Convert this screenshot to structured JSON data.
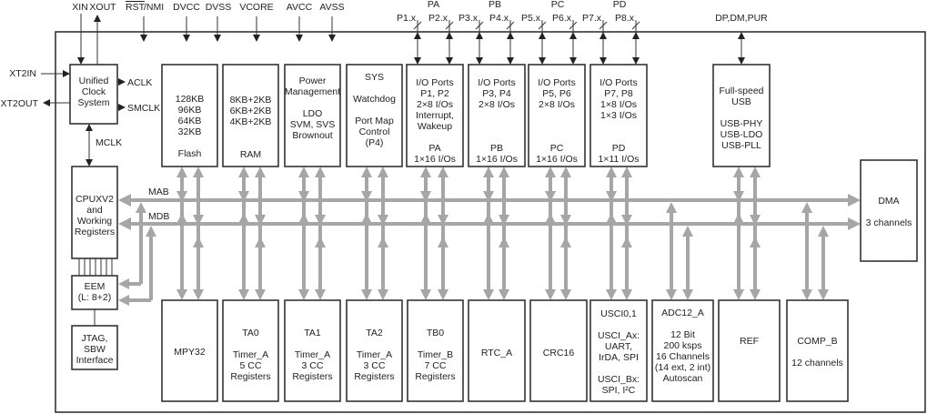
{
  "pins": {
    "xin": "XIN",
    "xout": "XOUT",
    "rst": "RST",
    "nmi": "/NMI",
    "dvcc": "DVCC",
    "dvss": "DVSS",
    "vcore": "VCORE",
    "avcc": "AVCC",
    "avss": "AVSS",
    "xt2in": "XT2IN",
    "xt2out": "XT2OUT",
    "usb": "DP,DM,PUR"
  },
  "ports": [
    {
      "group": "PA",
      "pins": [
        "P1.x",
        "P2.x"
      ]
    },
    {
      "group": "PB",
      "pins": [
        "P3.x",
        "P4.x"
      ]
    },
    {
      "group": "PC",
      "pins": [
        "P5.x",
        "P6.x"
      ]
    },
    {
      "group": "PD",
      "pins": [
        "P7.x",
        "P8.x"
      ]
    }
  ],
  "clocks": {
    "aclk": "ACLK",
    "smclk": "SMCLK",
    "mclk": "MCLK"
  },
  "buses": {
    "mab": "MAB",
    "mdb": "MDB"
  },
  "blocks": [
    {
      "id": "clock",
      "lines": [
        "Unified",
        "Clock",
        "System"
      ]
    },
    {
      "id": "flash",
      "lines": [
        "128KB",
        "96KB",
        "64KB",
        "32KB",
        "",
        "Flash"
      ]
    },
    {
      "id": "ram",
      "lines": [
        "8KB+2KB",
        "6KB+2KB",
        "4KB+2KB",
        "",
        "",
        "RAM"
      ]
    },
    {
      "id": "power",
      "lines": [
        "Power",
        "Management",
        "",
        "LDO",
        "SVM, SVS",
        "Brownout"
      ]
    },
    {
      "id": "sys",
      "lines": [
        "SYS",
        "",
        "Watchdog",
        "",
        "Port Map",
        "Control",
        "(P4)"
      ]
    },
    {
      "id": "port-pa",
      "lines": [
        "I/O Ports",
        "P1, P2",
        "2×8 I/Os",
        "Interrupt,",
        "Wakeup",
        "",
        "PA",
        "1×16 I/Os"
      ]
    },
    {
      "id": "port-pb",
      "lines": [
        "I/O Ports",
        "P3, P4",
        "2×8 I/Os",
        "",
        "",
        "",
        "PB",
        "1×16 I/Os"
      ]
    },
    {
      "id": "port-pc",
      "lines": [
        "I/O Ports",
        "P5, P6",
        "2×8 I/Os",
        "",
        "",
        "",
        "PC",
        "1×16 I/Os"
      ]
    },
    {
      "id": "port-pd",
      "lines": [
        "I/O Ports",
        "P7, P8",
        "1×8 I/Os",
        "1×3 I/Os",
        "",
        "",
        "PD",
        "1×11 I/Os"
      ]
    },
    {
      "id": "usb",
      "lines": [
        "Full-speed",
        "USB",
        "",
        "USB-PHY",
        "USB-LDO",
        "USB-PLL"
      ]
    },
    {
      "id": "cpu",
      "lines": [
        "CPUXV2",
        "and",
        "Working",
        "Registers"
      ]
    },
    {
      "id": "dma",
      "lines": [
        "DMA",
        "",
        "3 channels"
      ]
    },
    {
      "id": "eem",
      "lines": [
        "EEM",
        "(L: 8+2)"
      ]
    },
    {
      "id": "jtag",
      "lines": [
        "JTAG,",
        "SBW",
        "Interface"
      ]
    },
    {
      "id": "mpy32",
      "lines": [
        "MPY32"
      ]
    },
    {
      "id": "ta0",
      "lines": [
        "TA0",
        "",
        "Timer_A",
        "5 CC",
        "Registers"
      ]
    },
    {
      "id": "ta1",
      "lines": [
        "TA1",
        "",
        "Timer_A",
        "3 CC",
        "Registers"
      ]
    },
    {
      "id": "ta2",
      "lines": [
        "TA2",
        "",
        "Timer_A",
        "3 CC",
        "Registers"
      ]
    },
    {
      "id": "tb0",
      "lines": [
        "TB0",
        "",
        "Timer_B",
        "7 CC",
        "Registers"
      ]
    },
    {
      "id": "rtc",
      "lines": [
        "RTC_A"
      ]
    },
    {
      "id": "crc16",
      "lines": [
        "CRC16"
      ]
    },
    {
      "id": "usci",
      "lines": [
        "USCI0,1",
        "",
        "USCI_Ax:",
        "UART,",
        "IrDA, SPI",
        "",
        "USCI_Bx:",
        "SPI, I²C"
      ]
    },
    {
      "id": "adc",
      "lines": [
        "ADC12_A",
        "",
        "12 Bit",
        "200 ksps",
        "16 Channels",
        "(14 ext, 2 int)",
        "Autoscan"
      ]
    },
    {
      "id": "ref",
      "lines": [
        "REF"
      ]
    },
    {
      "id": "comp",
      "lines": [
        "COMP_B",
        "",
        "12 channels"
      ]
    }
  ],
  "colors": {
    "bus": "#a6a6a6",
    "outline": "#333333"
  }
}
